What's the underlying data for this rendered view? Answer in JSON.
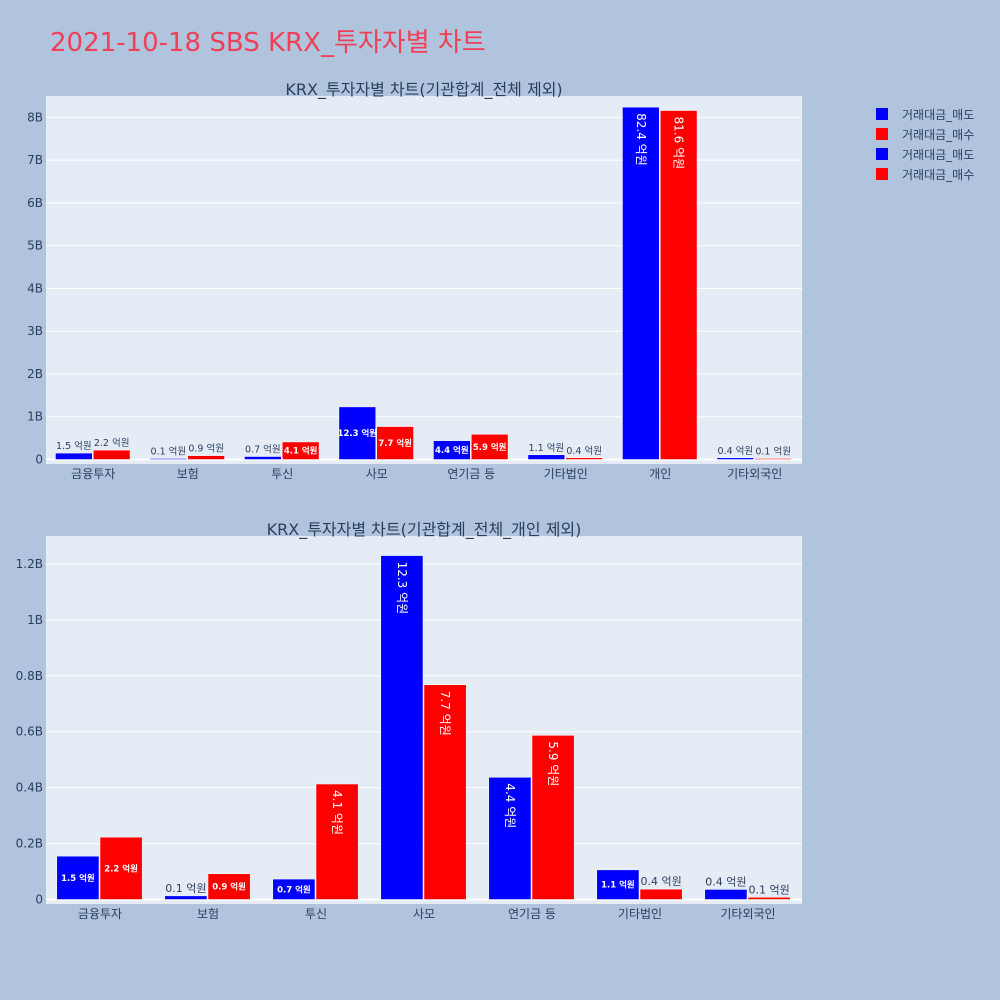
{
  "page": {
    "title": "2021-10-18 SBS KRX_투자자별 차트"
  },
  "legend": [
    {
      "label": "거래대금_매도",
      "color": "#0000ff"
    },
    {
      "label": "거래대금_매수",
      "color": "#ff0000"
    },
    {
      "label": "거래대금_매도",
      "color": "#0000ff"
    },
    {
      "label": "거래대금_매수",
      "color": "#ff0000"
    }
  ],
  "chart_data": [
    {
      "type": "bar",
      "title": "KRX_투자자별 차트(기관합계_전체 제외)",
      "categories": [
        "금융투자",
        "보험",
        "투신",
        "사모",
        "연기금 등",
        "기타법인",
        "개인",
        "기타외국인"
      ],
      "ylim": [
        0,
        8.5
      ],
      "yticks": [
        0,
        1,
        2,
        3,
        4,
        5,
        6,
        7,
        8
      ],
      "yticklabels": [
        "0",
        "1B",
        "2B",
        "3B",
        "4B",
        "5B",
        "6B",
        "7B",
        "8B"
      ],
      "series": [
        {
          "name": "거래대금_매도",
          "color": "#0000ff",
          "values": [
            0.15,
            0.01,
            0.07,
            1.23,
            0.44,
            0.11,
            8.24,
            0.04
          ],
          "labels": [
            "1.5 억원",
            "0.1 억원",
            "0.7 억원",
            "12.3 억원",
            "4.4 억원",
            "1.1 억원",
            "82.4 억원",
            "0.4 억원"
          ]
        },
        {
          "name": "거래대금_매수",
          "color": "#ff0000",
          "values": [
            0.22,
            0.09,
            0.41,
            0.77,
            0.59,
            0.04,
            8.16,
            0.01
          ],
          "labels": [
            "2.2 억원",
            "0.9 억원",
            "4.1 억원",
            "7.7 억원",
            "5.9 억원",
            "0.4 억원",
            "81.6 억원",
            "0.1 억원"
          ]
        }
      ]
    },
    {
      "type": "bar",
      "title": "KRX_투자자별 차트(기관합계_전체_개인 제외)",
      "categories": [
        "금융투자",
        "보험",
        "투신",
        "사모",
        "연기금 등",
        "기타법인",
        "기타외국인"
      ],
      "ylim": [
        0,
        1.3
      ],
      "yticks": [
        0,
        0.2,
        0.4,
        0.6,
        0.8,
        1.0,
        1.2
      ],
      "yticklabels": [
        "0",
        "0.2B",
        "0.4B",
        "0.6B",
        "0.8B",
        "1B",
        "1.2B"
      ],
      "series": [
        {
          "name": "거래대금_매도",
          "color": "#0000ff",
          "values": [
            0.155,
            0.013,
            0.073,
            1.23,
            0.437,
            0.106,
            0.036
          ],
          "labels": [
            "1.5 억원",
            "0.1 억원",
            "0.7 억원",
            "12.3 억원",
            "4.4 억원",
            "1.1 억원",
            "0.4 억원"
          ]
        },
        {
          "name": "거래대금_매수",
          "color": "#ff0000",
          "values": [
            0.223,
            0.092,
            0.413,
            0.768,
            0.587,
            0.037,
            0.008
          ],
          "labels": [
            "2.2 억원",
            "0.9 억원",
            "4.1 억원",
            "7.7 억원",
            "5.9 억원",
            "0.4 억원",
            "0.1 억원"
          ]
        }
      ]
    }
  ]
}
